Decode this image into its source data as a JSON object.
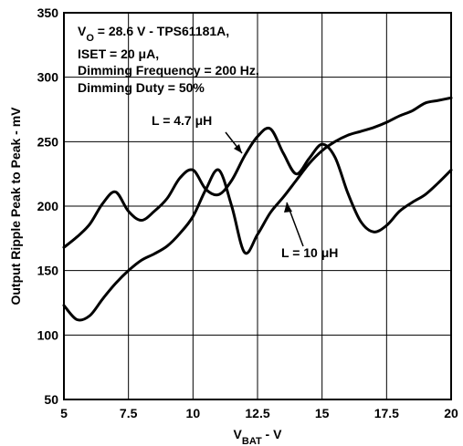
{
  "chart_data": {
    "type": "line",
    "xlabel_main": "V",
    "xlabel_sub": "BAT",
    "xlabel_tail": " - V",
    "ylabel": "Output Ripple Peak to Peak - mV",
    "xlim": [
      5,
      20
    ],
    "ylim": [
      50,
      350
    ],
    "xticks": [
      5,
      7.5,
      10,
      12.5,
      15,
      17.5,
      20
    ],
    "yticks": [
      50,
      100,
      150,
      200,
      250,
      300,
      350
    ],
    "xtick_labels": [
      "5",
      "7.5",
      "10",
      "12.5",
      "15",
      "17.5",
      "20"
    ],
    "ytick_labels": [
      "50",
      "100",
      "150",
      "200",
      "250",
      "300",
      "350"
    ],
    "grid": true,
    "annotation_lines": [
      {
        "main": "V",
        "sub": "O",
        "rest": " = 28.6 V - TPS61181A,"
      },
      {
        "main": "ISET = 20 μA,",
        "sub": "",
        "rest": ""
      },
      {
        "main": "Dimming Frequency = 200 Hz,",
        "sub": "",
        "rest": ""
      },
      {
        "main": "Dimming Duty = 50%",
        "sub": "",
        "rest": ""
      }
    ],
    "series": [
      {
        "name": "L = 4.7 μH",
        "color": "#000000",
        "x": [
          5,
          5.5,
          6,
          6.5,
          7,
          7.5,
          8,
          8.5,
          9,
          9.5,
          10,
          10.5,
          11,
          11.5,
          12,
          12.5,
          13,
          13.5,
          14,
          14.5,
          15,
          15.5,
          16,
          16.5,
          17,
          17.5,
          18,
          18.5,
          19,
          19.5,
          20
        ],
        "y": [
          168,
          176,
          186,
          202,
          211,
          196,
          189,
          196,
          206,
          222,
          228,
          213,
          209,
          220,
          239,
          254,
          260,
          241,
          225,
          237,
          248,
          238,
          210,
          188,
          180,
          185,
          196,
          203,
          209,
          218,
          228
        ]
      },
      {
        "name": "L = 10 μH",
        "color": "#000000",
        "x": [
          5,
          5.5,
          6,
          6.5,
          7,
          7.5,
          8,
          8.5,
          9,
          9.5,
          10,
          10.5,
          11,
          11.5,
          12,
          12.5,
          13,
          13.5,
          14,
          14.5,
          15,
          15.5,
          16,
          16.5,
          17,
          17.5,
          18,
          18.5,
          19,
          19.5,
          20
        ],
        "y": [
          123,
          112,
          115,
          128,
          140,
          150,
          158,
          163,
          169,
          179,
          192,
          213,
          228,
          200,
          164,
          178,
          195,
          207,
          220,
          233,
          243,
          250,
          255,
          258,
          261,
          265,
          270,
          274,
          280,
          282,
          284
        ]
      }
    ]
  }
}
